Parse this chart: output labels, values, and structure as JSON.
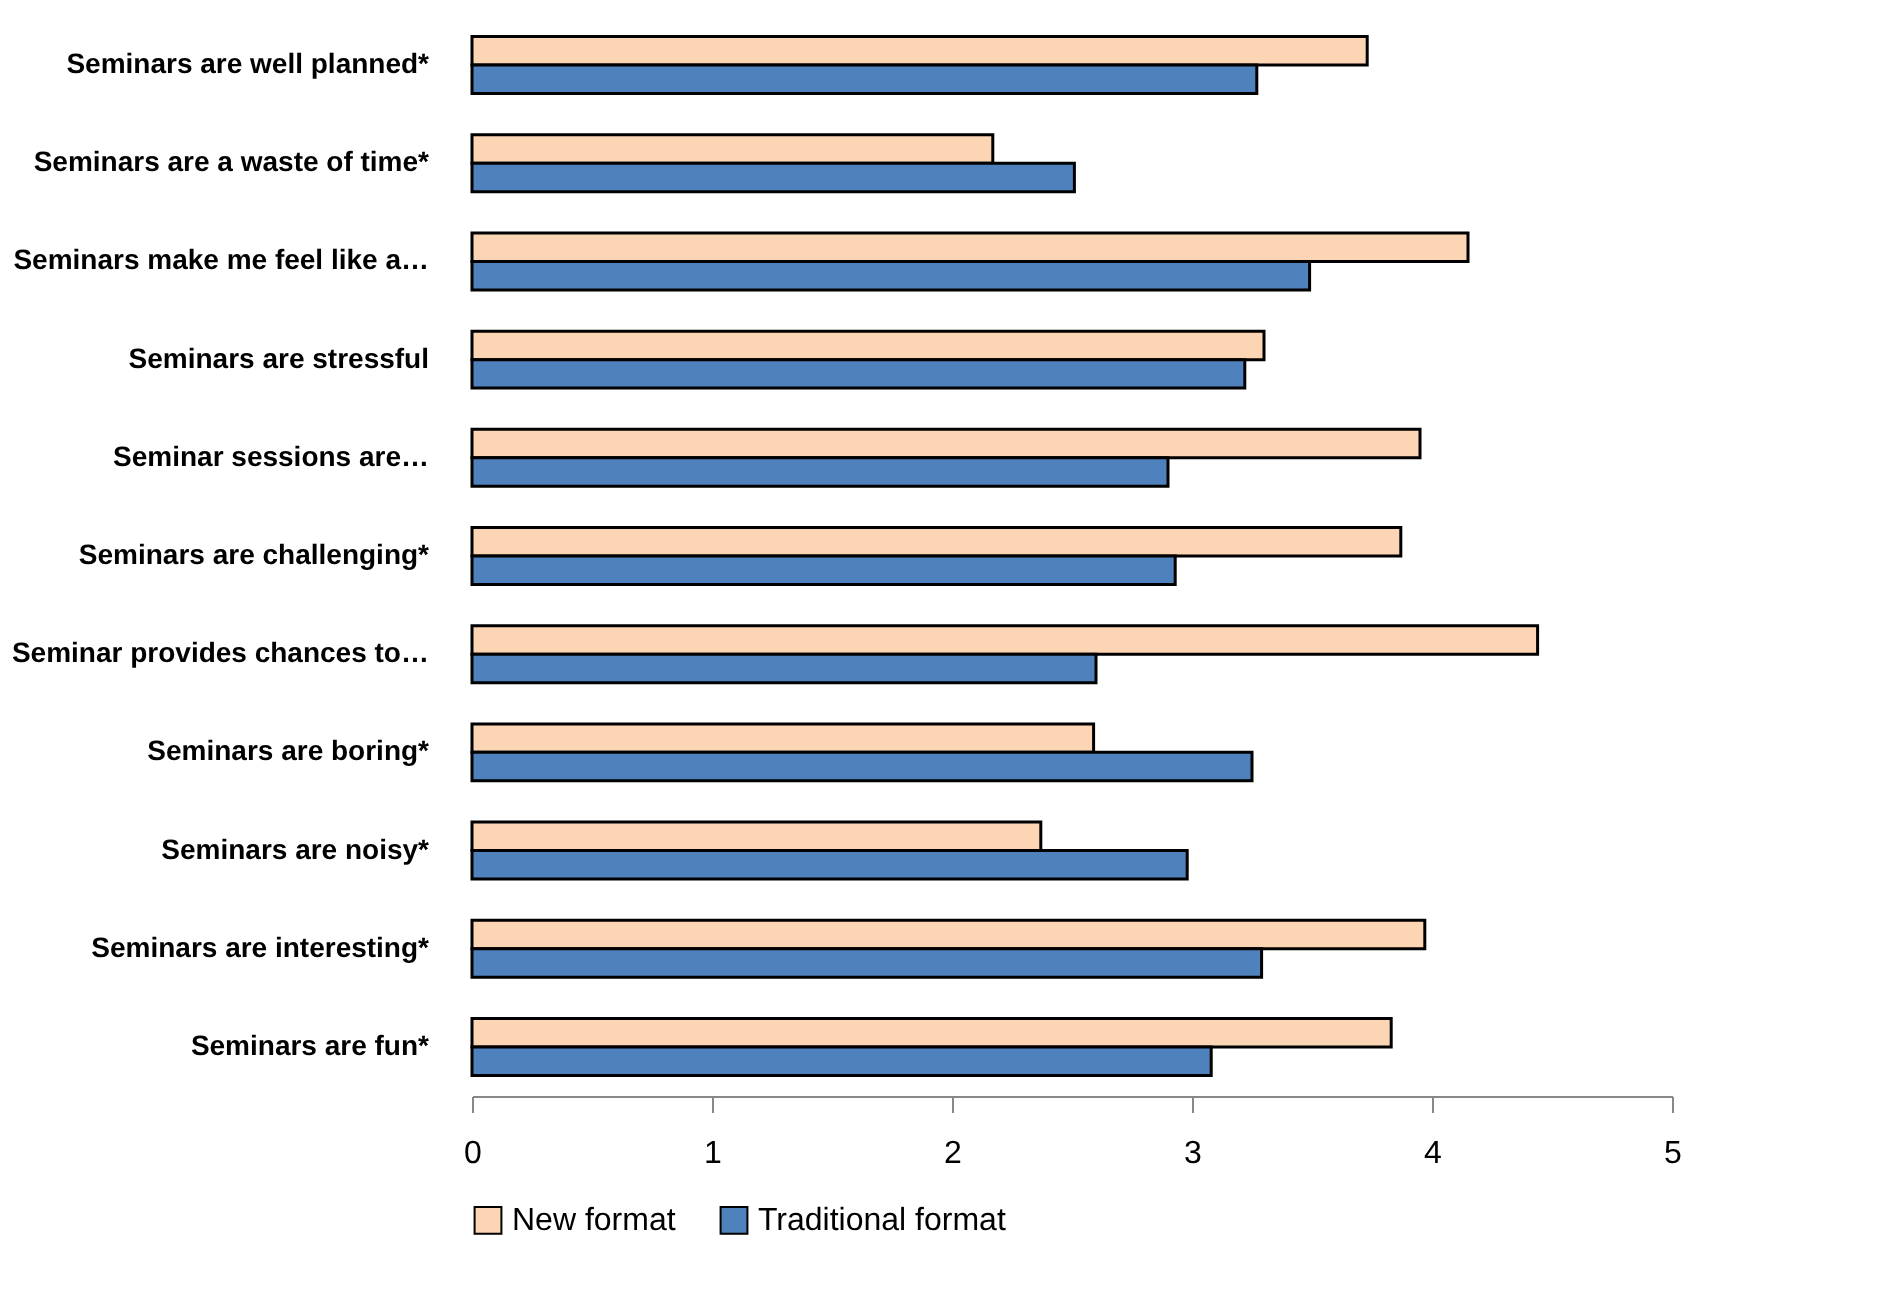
{
  "chart_data": {
    "type": "bar",
    "orientation": "horizontal",
    "categories": [
      "Seminars are well planned*",
      "Seminars are a waste of time*",
      "Seminars make me feel like a…",
      "Seminars are stressful",
      "Seminar sessions are…",
      "Seminars are challenging*",
      "Seminar provides chances to…",
      "Seminars are boring*",
      "Seminars are noisy*",
      "Seminars are interesting*",
      "Seminars are fun*"
    ],
    "series": [
      {
        "name": "New format",
        "color": "#fcd5b5",
        "values": [
          3.73,
          2.17,
          4.15,
          3.3,
          3.95,
          3.87,
          4.44,
          2.59,
          2.37,
          3.97,
          3.83
        ]
      },
      {
        "name": "Traditional format",
        "color": "#4f81bd",
        "values": [
          3.27,
          2.51,
          3.49,
          3.22,
          2.9,
          2.93,
          2.6,
          3.25,
          2.98,
          3.29,
          3.08
        ]
      }
    ],
    "xlim": [
      0,
      5
    ],
    "xticks": [
      0,
      1,
      2,
      3,
      4,
      5
    ],
    "grid": false,
    "legend": "bottom"
  }
}
